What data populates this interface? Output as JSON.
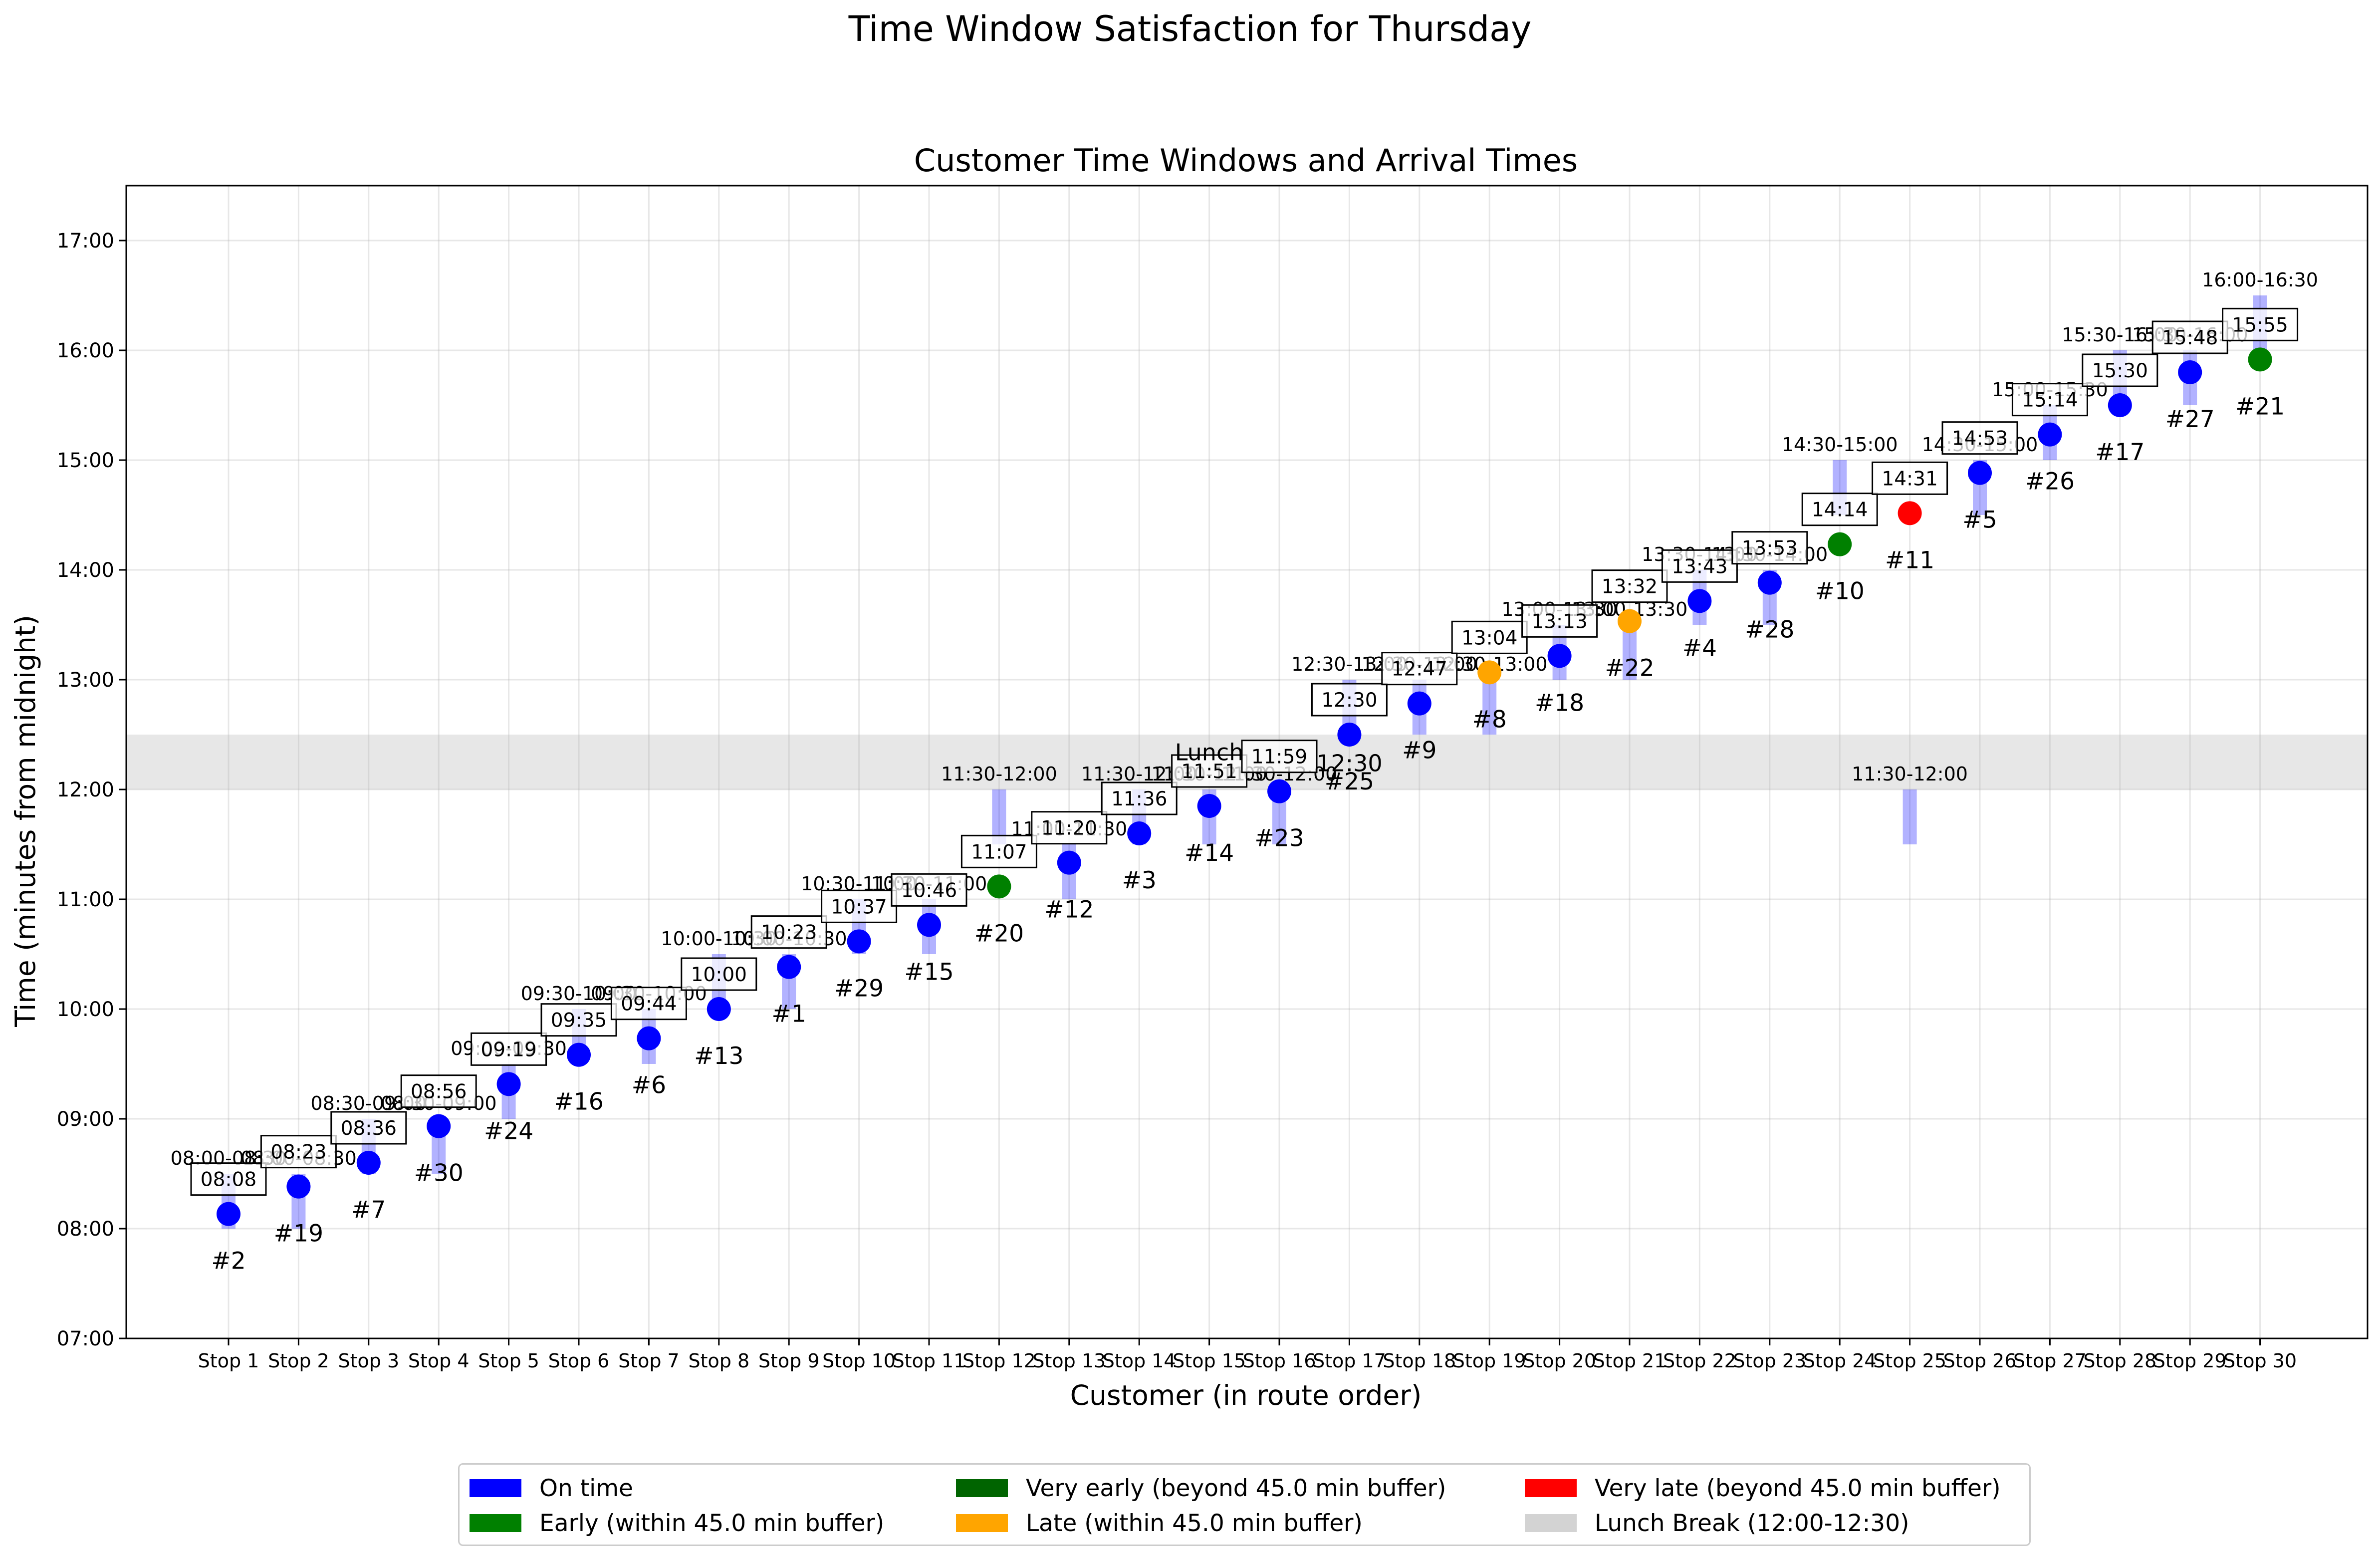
{
  "figure": {
    "suptitle": "Time Window Satisfaction for Thursday"
  },
  "legend": {
    "items": [
      {
        "label": "On time",
        "color": "#0000ff"
      },
      {
        "label": "Very early (beyond 45.0 min buffer)",
        "color": "#006400"
      },
      {
        "label": "Very late (beyond 45.0 min buffer)",
        "color": "#ff0000"
      },
      {
        "label": "Early (within 45.0 min buffer)",
        "color": "#008000"
      },
      {
        "label": "Late (within 45.0 min buffer)",
        "color": "#ffa500"
      },
      {
        "label": "Lunch Break (12:00-12:30)",
        "color": "#d3d3d3"
      }
    ]
  },
  "chart_data": {
    "type": "scatter",
    "title": "Customer Time Windows and Arrival Times",
    "xlabel": "Customer (in route order)",
    "ylabel": "Time (minutes from midnight)",
    "ylim": [
      "07:00",
      "17:30"
    ],
    "y_ticks": [
      "07:00",
      "08:00",
      "09:00",
      "10:00",
      "11:00",
      "12:00",
      "13:00",
      "14:00",
      "15:00",
      "16:00",
      "17:00"
    ],
    "grid": true,
    "lunch_break": {
      "start": "12:00",
      "end": "12:30"
    },
    "status_colors": {
      "on_time": "#0000ff",
      "early": "#008000",
      "very_early": "#006400",
      "late": "#ffa500",
      "very_late": "#ff0000"
    },
    "stops": [
      {
        "stop": "Stop 1",
        "customer": "#2",
        "window": "08:00-08:30",
        "arrival": "08:08",
        "status": "on_time"
      },
      {
        "stop": "Stop 2",
        "customer": "#19",
        "window": "08:00-08:30",
        "arrival": "08:23",
        "status": "on_time"
      },
      {
        "stop": "Stop 3",
        "customer": "#7",
        "window": "08:30-09:00",
        "arrival": "08:36",
        "status": "on_time"
      },
      {
        "stop": "Stop 4",
        "customer": "#30",
        "window": "08:30-09:00",
        "arrival": "08:56",
        "status": "on_time"
      },
      {
        "stop": "Stop 5",
        "customer": "#24",
        "window": "09:00-09:30",
        "arrival": "09:19",
        "status": "on_time"
      },
      {
        "stop": "Stop 6",
        "customer": "#16",
        "window": "09:30-10:00",
        "arrival": "09:35",
        "status": "on_time"
      },
      {
        "stop": "Stop 7",
        "customer": "#6",
        "window": "09:30-10:00",
        "arrival": "09:44",
        "status": "on_time"
      },
      {
        "stop": "Stop 8",
        "customer": "#13",
        "window": "10:00-10:30",
        "arrival": "10:00",
        "status": "on_time"
      },
      {
        "stop": "Stop 9",
        "customer": "#1",
        "window": "10:00-10:30",
        "arrival": "10:23",
        "status": "on_time"
      },
      {
        "stop": "Stop 10",
        "customer": "#29",
        "window": "10:30-11:00",
        "arrival": "10:37",
        "status": "on_time"
      },
      {
        "stop": "Stop 11",
        "customer": "#15",
        "window": "10:30-11:00",
        "arrival": "10:46",
        "status": "on_time"
      },
      {
        "stop": "Stop 12",
        "customer": "#20",
        "window": "11:30-12:00",
        "arrival": "11:07",
        "status": "early"
      },
      {
        "stop": "Stop 13",
        "customer": "#12",
        "window": "11:00-11:30",
        "arrival": "11:20",
        "status": "on_time"
      },
      {
        "stop": "Stop 14",
        "customer": "#3",
        "window": "11:30-12:00",
        "arrival": "11:36",
        "status": "on_time"
      },
      {
        "stop": "Stop 15",
        "customer": "#14",
        "window": "11:30-12:00",
        "arrival": "11:51",
        "status": "on_time"
      },
      {
        "stop": "Stop 16",
        "customer": "#23",
        "window": "11:30-12:00",
        "arrival": "11:59",
        "status": "on_time"
      },
      {
        "stop": "Stop 17",
        "customer": "#25",
        "window": "12:30-13:00",
        "arrival": "12:30",
        "status": "on_time"
      },
      {
        "stop": "Stop 18",
        "customer": "#9",
        "window": "12:30-13:00",
        "arrival": "12:47",
        "status": "on_time"
      },
      {
        "stop": "Stop 19",
        "customer": "#8",
        "window": "12:30-13:00",
        "arrival": "13:04",
        "status": "late"
      },
      {
        "stop": "Stop 20",
        "customer": "#18",
        "window": "13:00-13:30",
        "arrival": "13:13",
        "status": "on_time"
      },
      {
        "stop": "Stop 21",
        "customer": "#22",
        "window": "13:00-13:30",
        "arrival": "13:32",
        "status": "late"
      },
      {
        "stop": "Stop 22",
        "customer": "#4",
        "window": "13:30-14:00",
        "arrival": "13:43",
        "status": "on_time"
      },
      {
        "stop": "Stop 23",
        "customer": "#28",
        "window": "13:30-14:00",
        "arrival": "13:53",
        "status": "on_time"
      },
      {
        "stop": "Stop 24",
        "customer": "#10",
        "window": "14:30-15:00",
        "arrival": "14:14",
        "status": "early"
      },
      {
        "stop": "Stop 25",
        "customer": "#11",
        "window": "11:30-12:00",
        "arrival": "14:31",
        "status": "very_late"
      },
      {
        "stop": "Stop 26",
        "customer": "#5",
        "window": "14:30-15:00",
        "arrival": "14:53",
        "status": "on_time"
      },
      {
        "stop": "Stop 27",
        "customer": "#26",
        "window": "15:00-15:30",
        "arrival": "15:14",
        "status": "on_time"
      },
      {
        "stop": "Stop 28",
        "customer": "#17",
        "window": "15:30-16:00",
        "arrival": "15:30",
        "status": "on_time"
      },
      {
        "stop": "Stop 29",
        "customer": "#27",
        "window": "15:30-16:00",
        "arrival": "15:48",
        "status": "on_time"
      },
      {
        "stop": "Stop 30",
        "customer": "#21",
        "window": "16:00-16:30",
        "arrival": "15:55",
        "status": "early"
      }
    ],
    "annotations": [
      {
        "text": "Lunch",
        "stop": 15,
        "time": "12:16"
      },
      {
        "text": "12:30",
        "stop": 17,
        "time": "12:10"
      }
    ]
  }
}
